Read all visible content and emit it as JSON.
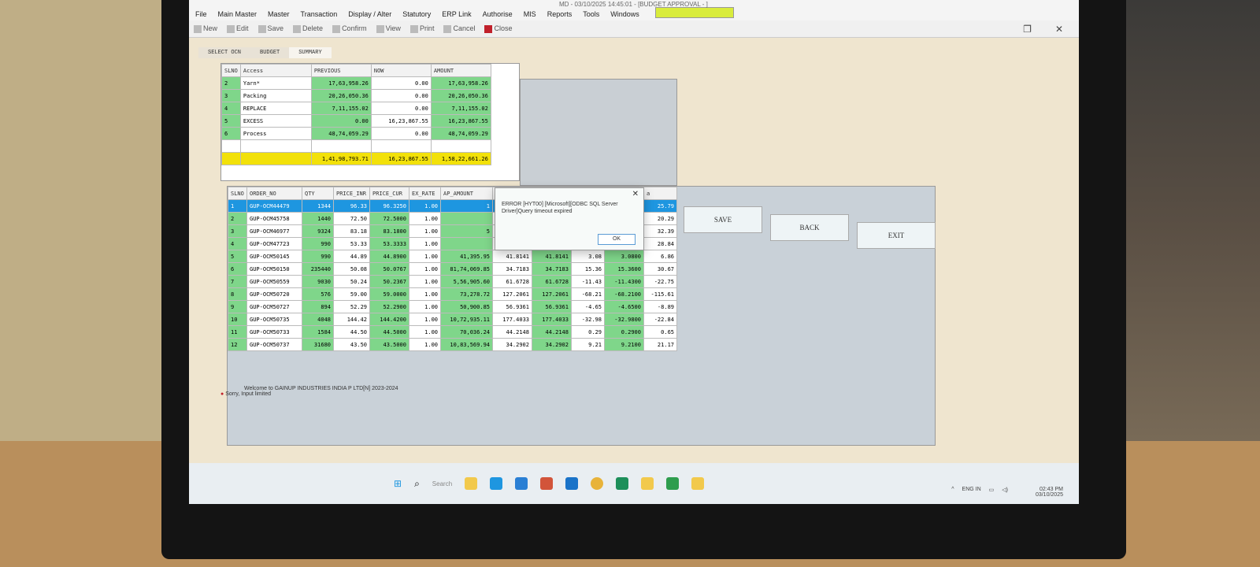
{
  "window": {
    "title": "MD - 03/10/2025 14:45:01 - [BUDGET APPROVAL - ]"
  },
  "menu": [
    "File",
    "Main Master",
    "Master",
    "Transaction",
    "Display / Alter",
    "Statutory",
    "ERP Link",
    "Authorise",
    "MIS",
    "Reports",
    "Tools",
    "Windows"
  ],
  "toolbar": [
    "New",
    "Edit",
    "Save",
    "Delete",
    "Confirm",
    "View",
    "Print",
    "Cancel",
    "Close"
  ],
  "tabs": [
    "SELECT OCN",
    "BUDGET",
    "SUMMARY"
  ],
  "summary": {
    "headers": [
      "SLNO",
      "Access",
      "PREVIOUS",
      "NOW",
      "AMOUNT"
    ],
    "rows": [
      [
        "2",
        "Yarn*",
        "17,63,958.26",
        "0.00",
        "17,63,958.26"
      ],
      [
        "3",
        "Packing",
        "20,26,050.36",
        "0.00",
        "20,26,050.36"
      ],
      [
        "4",
        "REPLACE",
        "7,11,155.02",
        "0.00",
        "7,11,155.02"
      ],
      [
        "5",
        "EXCESS",
        "0.00",
        "16,23,867.55",
        "16,23,867.55"
      ],
      [
        "6",
        "Process",
        "48,74,059.29",
        "0.00",
        "48,74,059.29"
      ]
    ],
    "totals": [
      "",
      "",
      "1,41,98,793.71",
      "16,23,867.55",
      "1,58,22,661.26"
    ]
  },
  "orders": {
    "headers": [
      "SLNO",
      "ORDER_NO",
      "QTY",
      "PRICE_INR",
      "PRICE_CUR",
      "EX_RATE",
      "AP_AMOUNT",
      "",
      "",
      "",
      "",
      "a"
    ],
    "rows": [
      [
        "1",
        "GUP-OCM44479",
        "1344",
        "96.33",
        "96.3250",
        "1.00",
        "1",
        "",
        "",
        "",
        "",
        "25.79"
      ],
      [
        "2",
        "GUP-OCM45758",
        "1440",
        "72.50",
        "72.5000",
        "1.00",
        "",
        "",
        "",
        "",
        "",
        "20.29"
      ],
      [
        "3",
        "GUP-OCM46977",
        "9324",
        "83.18",
        "83.1800",
        "1.00",
        "5",
        "",
        "",
        "",
        "",
        "32.39"
      ],
      [
        "4",
        "GUP-OCM47723",
        "990",
        "53.33",
        "53.3333",
        "1.00",
        "",
        "",
        "",
        "",
        "",
        "28.84"
      ],
      [
        "5",
        "GUP-OCM50145",
        "990",
        "44.89",
        "44.8900",
        "1.00",
        "41,395.95",
        "41.8141",
        "41.8141",
        "3.08",
        "3.0800",
        "6.86"
      ],
      [
        "6",
        "GUP-OCM50150",
        "235440",
        "50.08",
        "50.0767",
        "1.00",
        "81,74,069.85",
        "34.7183",
        "34.7183",
        "15.36",
        "15.3600",
        "30.67"
      ],
      [
        "7",
        "GUP-OCM50559",
        "9030",
        "50.24",
        "50.2367",
        "1.00",
        "5,56,905.60",
        "61.6728",
        "61.6728",
        "-11.43",
        "-11.4300",
        "-22.75"
      ],
      [
        "8",
        "GUP-OCM50720",
        "576",
        "59.00",
        "59.0000",
        "1.00",
        "73,278.72",
        "127.2061",
        "127.2061",
        "-68.21",
        "-68.2100",
        "-115.61"
      ],
      [
        "9",
        "GUP-OCM50727",
        "894",
        "52.29",
        "52.2900",
        "1.00",
        "50,900.85",
        "56.9361",
        "56.9361",
        "-4.65",
        "-4.6500",
        "-8.89"
      ],
      [
        "10",
        "GUP-OCM50735",
        "4048",
        "144.42",
        "144.4200",
        "1.00",
        "10,72,935.11",
        "177.4033",
        "177.4033",
        "-32.98",
        "-32.9800",
        "-22.84"
      ],
      [
        "11",
        "GUP-OCM50733",
        "1584",
        "44.50",
        "44.5000",
        "1.00",
        "70,036.24",
        "44.2148",
        "44.2148",
        "0.29",
        "0.2900",
        "0.65"
      ],
      [
        "12",
        "GUP-OCM50737",
        "31680",
        "43.50",
        "43.5000",
        "1.00",
        "10,83,569.94",
        "34.2902",
        "34.2902",
        "9.21",
        "9.2100",
        "21.17"
      ]
    ],
    "selected_row": 1
  },
  "buttons": {
    "save": "SAVE",
    "back": "BACK",
    "exit": "EXIT"
  },
  "dialog": {
    "message": "ERROR [HYT00] [Microsoft][ODBC SQL Server Driver]Query timeout expired",
    "ok": "OK"
  },
  "status": {
    "welcome": "Welcome to GAINUP INDUSTRIES INDIA P LTD[N] 2023-2024",
    "notice": "Sorry, Input limited"
  },
  "taskbar": {
    "search": "Search",
    "lang": "ENG IN",
    "time": "02:43 PM",
    "date": "03/10/2025"
  },
  "colors": {
    "green": "#7fd68a",
    "yellow": "#f2e10a",
    "selected": "#1e96e0",
    "close": "#c0202a"
  }
}
